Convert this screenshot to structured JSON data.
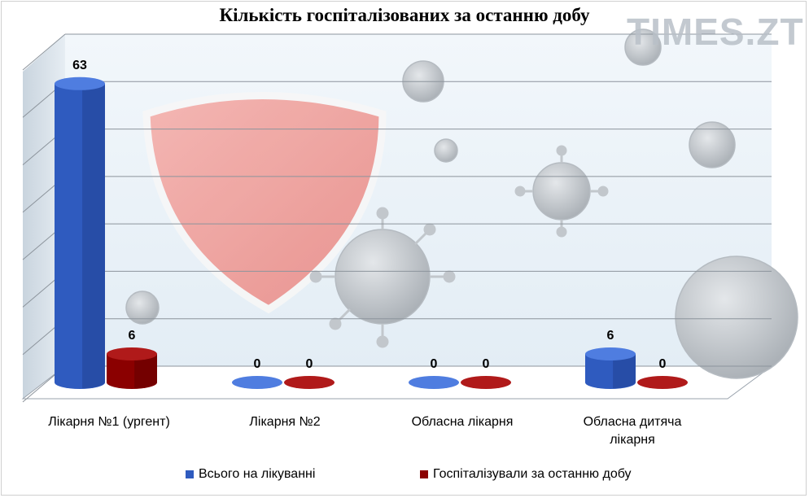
{
  "title": "Кількість госпіталізованих за останню добу",
  "watermark": "TIMES.ZT",
  "chart_data": {
    "type": "bar",
    "title": "Кількість госпіталізованих за останню добу",
    "categories": [
      "Лікарня №1 (ургент)",
      "Лікарня №2",
      "Обласна лікарня",
      "Обласна дитяча лікарня"
    ],
    "series": [
      {
        "name": "Всього на лікуванні",
        "values": [
          63,
          0,
          0,
          6
        ],
        "color": "#2f5bbf"
      },
      {
        "name": "Госпіталізували за останню добу",
        "values": [
          6,
          0,
          0,
          0
        ],
        "color": "#8b0000"
      }
    ],
    "ylim": [
      0,
      70
    ],
    "grid": true,
    "legend_position": "bottom",
    "xlabel": "",
    "ylabel": ""
  }
}
